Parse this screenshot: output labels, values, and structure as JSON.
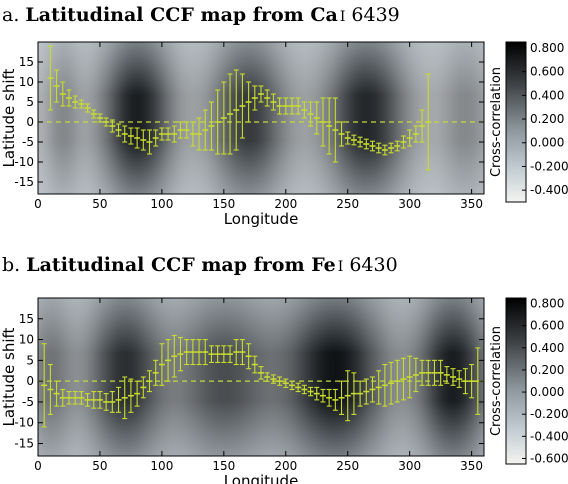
{
  "chart_data": [
    {
      "type": "heatmap",
      "title_prefix": "a. ",
      "title_main": "Latitudinal CCF map from Ca",
      "title_ion": "I",
      "title_line": "6439",
      "xlabel": "Longitude",
      "ylabel": "Latitude shift",
      "xlim": [
        0,
        360
      ],
      "ylim": [
        -18,
        20
      ],
      "xticks": [
        "0",
        "50",
        "100",
        "150",
        "200",
        "250",
        "300",
        "350"
      ],
      "yticks": [
        "-15",
        "-10",
        "-5",
        "0",
        "5",
        "10",
        "15"
      ],
      "colorbar": {
        "label": "Cross-correlation",
        "ticks": [
          "0.800",
          "0.600",
          "0.400",
          "0.200",
          "0.000",
          "-0.200",
          "-0.400"
        ],
        "range": [
          -0.5,
          0.85
        ]
      },
      "series": [
        {
          "x": [
            10,
            15,
            20,
            25,
            30,
            35,
            40,
            45,
            50,
            55,
            60,
            65,
            70,
            75,
            80,
            85,
            90,
            95,
            100,
            105,
            110,
            115,
            120,
            125,
            130,
            135,
            140,
            145,
            150,
            155,
            160,
            165,
            170,
            175,
            180,
            185,
            190,
            195,
            200,
            205,
            210,
            215,
            220,
            225,
            230,
            235,
            240,
            245,
            250,
            255,
            260,
            265,
            270,
            275,
            280,
            285,
            290,
            295,
            300,
            305,
            310,
            315
          ],
          "y": [
            11,
            9,
            7,
            6,
            5,
            4.5,
            3.5,
            2,
            1,
            0,
            -1,
            -2,
            -3,
            -3.5,
            -4,
            -4.5,
            -5,
            -4,
            -3,
            -3,
            -3,
            -2,
            -2,
            -3,
            -3,
            -2,
            -1,
            0,
            1,
            2,
            3,
            4,
            5,
            6,
            7,
            6,
            5,
            4,
            4,
            4,
            4,
            3,
            2,
            1,
            0,
            -1,
            -2,
            -3,
            -4,
            -4.5,
            -5,
            -5.5,
            -6,
            -6.5,
            -7,
            -6.5,
            -6,
            -5,
            -4,
            -3,
            -1,
            0
          ],
          "err": [
            8,
            4,
            3,
            2,
            1.5,
            1,
            1,
            1,
            1,
            1,
            1.5,
            1.5,
            2,
            2,
            2.5,
            2.5,
            3,
            2,
            1.5,
            1.5,
            2,
            2,
            2,
            3,
            4,
            5,
            6,
            8,
            9,
            10,
            10,
            8,
            5,
            3,
            2,
            2,
            2,
            2,
            2,
            2,
            2,
            2,
            3,
            4,
            6,
            7,
            8,
            3,
            1.5,
            1.2,
            1.2,
            1.2,
            1.2,
            1.2,
            1.2,
            1.2,
            1.2,
            1.5,
            2,
            2,
            4,
            12
          ]
        }
      ]
    },
    {
      "type": "heatmap",
      "title_prefix": "b. ",
      "title_main": "Latitudinal CCF map from Fe",
      "title_ion": "I",
      "title_line": "6430",
      "xlabel": "Longitude",
      "ylabel": "Latitude shift",
      "xlim": [
        0,
        360
      ],
      "ylim": [
        -18,
        20
      ],
      "xticks": [
        "0",
        "50",
        "100",
        "150",
        "200",
        "250",
        "300",
        "350"
      ],
      "yticks": [
        "-15",
        "-10",
        "-5",
        "0",
        "5",
        "10",
        "15"
      ],
      "colorbar": {
        "label": "Cross-correlation",
        "ticks": [
          "0.800",
          "0.600",
          "0.400",
          "0.200",
          "0.000",
          "-0.200",
          "-0.400",
          "-0.600"
        ],
        "range": [
          -0.65,
          0.85
        ]
      },
      "series": [
        {
          "x": [
            5,
            10,
            15,
            20,
            25,
            30,
            35,
            40,
            45,
            50,
            55,
            60,
            65,
            70,
            75,
            80,
            85,
            90,
            95,
            100,
            105,
            110,
            115,
            120,
            125,
            130,
            135,
            140,
            145,
            150,
            155,
            160,
            165,
            170,
            175,
            180,
            185,
            190,
            195,
            200,
            205,
            210,
            215,
            220,
            225,
            230,
            235,
            240,
            245,
            250,
            255,
            260,
            265,
            270,
            275,
            280,
            285,
            290,
            295,
            300,
            305,
            310,
            315,
            320,
            325,
            330,
            335,
            340,
            345,
            350,
            355
          ],
          "y": [
            -1,
            -2,
            -3,
            -4,
            -4,
            -4,
            -4,
            -4.5,
            -4.5,
            -4.5,
            -5,
            -5,
            -4.5,
            -4,
            -3.5,
            -3,
            -1.5,
            0,
            2,
            4,
            5,
            6,
            6.5,
            7,
            7,
            7,
            7,
            6.5,
            6.5,
            6.5,
            6.5,
            7,
            7,
            6,
            4,
            2,
            1,
            0.5,
            0,
            -0.5,
            -1,
            -1.5,
            -2,
            -2.5,
            -3,
            -3.5,
            -4,
            -4.5,
            -4,
            -3.5,
            -3,
            -3,
            -2.5,
            -2,
            -1.5,
            -1,
            -0.5,
            0,
            0.5,
            1,
            1.5,
            2,
            2,
            2,
            2,
            1.5,
            1,
            0.5,
            0,
            0,
            0
          ],
          "err": [
            10,
            6,
            3,
            2,
            1.5,
            1.5,
            1.5,
            1.5,
            2,
            2,
            2,
            2.5,
            3,
            5,
            4,
            3,
            2.5,
            2.5,
            3,
            5,
            5,
            5,
            4,
            3,
            3,
            3,
            3,
            2,
            2,
            2,
            2,
            3,
            3,
            3,
            2,
            1.5,
            1,
            1,
            1,
            1,
            1,
            1,
            1,
            1,
            1.5,
            1.5,
            2,
            2.5,
            4,
            6,
            5,
            3,
            3,
            3,
            4,
            5,
            5,
            5,
            5,
            5,
            4,
            3,
            3,
            3,
            3,
            2,
            2,
            2,
            3,
            4,
            8
          ]
        }
      ]
    }
  ]
}
